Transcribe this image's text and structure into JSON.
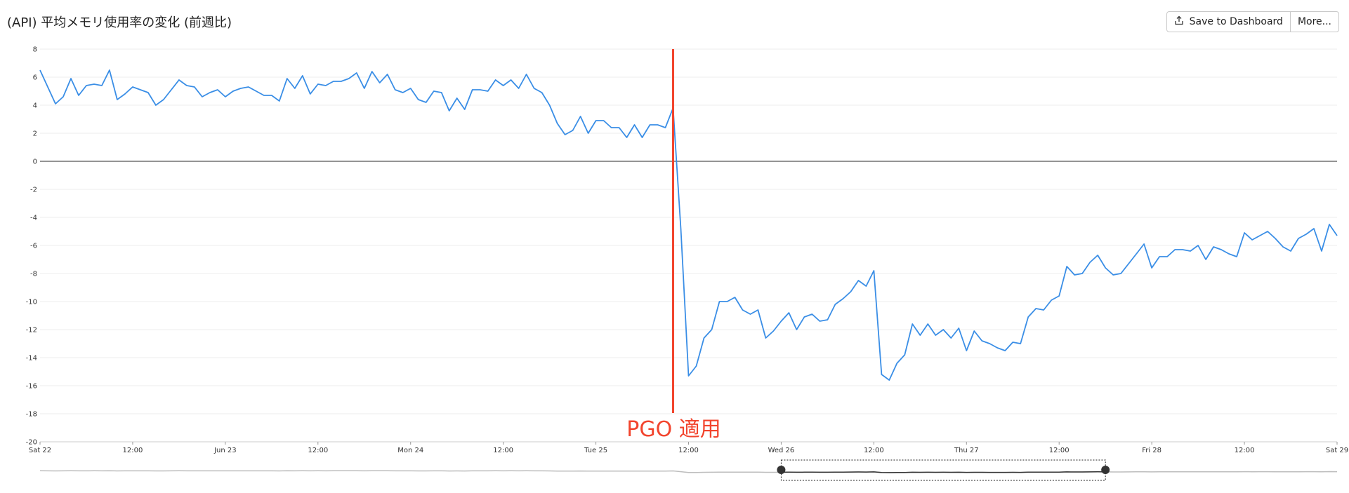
{
  "header": {
    "title": "(API) 平均メモリ使用率の変化 (前週比)",
    "save_label": "Save to Dashboard",
    "more_label": "More...",
    "save_icon": "upload-icon"
  },
  "colors": {
    "series": "#3a8ee6",
    "annotation": "#f2442d",
    "zero_line": "#555555",
    "grid": "#eeeeee",
    "overview_line": "#bdbdbd",
    "overview_selected": "#333333"
  },
  "chart_data": {
    "type": "line",
    "title": "(API) 平均メモリ使用率の変化 (前週比)",
    "xlabel": "",
    "ylabel": "",
    "ylim": [
      -20,
      8
    ],
    "xlim_hours": [
      0,
      168
    ],
    "y_ticks": [
      "8",
      "6",
      "4",
      "2",
      "0",
      "-2",
      "-4",
      "-6",
      "-8",
      "-10",
      "-12",
      "-14",
      "-16",
      "-18",
      "-20"
    ],
    "x_ticks": [
      {
        "label": "Sat 22",
        "hour": 0
      },
      {
        "label": "12:00",
        "hour": 12
      },
      {
        "label": "Jun 23",
        "hour": 24
      },
      {
        "label": "12:00",
        "hour": 36
      },
      {
        "label": "Mon 24",
        "hour": 48
      },
      {
        "label": "12:00",
        "hour": 60
      },
      {
        "label": "Tue 25",
        "hour": 72
      },
      {
        "label": "12:00",
        "hour": 84
      },
      {
        "label": "Wed 26",
        "hour": 96
      },
      {
        "label": "12:00",
        "hour": 108
      },
      {
        "label": "Thu 27",
        "hour": 120
      },
      {
        "label": "12:00",
        "hour": 132
      },
      {
        "label": "Fri 28",
        "hour": 144
      },
      {
        "label": "12:00",
        "hour": 156
      },
      {
        "label": "Sat 29",
        "hour": 168
      }
    ],
    "grid": true,
    "legend": "none",
    "series": [
      {
        "points": [
          [
            0,
            6.5
          ],
          [
            1,
            5.3
          ],
          [
            2,
            4.1
          ],
          [
            3,
            4.6
          ],
          [
            4,
            5.9
          ],
          [
            5,
            4.7
          ],
          [
            6,
            5.4
          ],
          [
            7,
            5.5
          ],
          [
            8,
            5.4
          ],
          [
            9,
            6.5
          ],
          [
            10,
            4.4
          ],
          [
            11,
            4.8
          ],
          [
            12,
            5.3
          ],
          [
            13,
            5.1
          ],
          [
            14,
            4.9
          ],
          [
            15,
            4.0
          ],
          [
            16,
            4.4
          ],
          [
            17,
            5.1
          ],
          [
            18,
            5.8
          ],
          [
            19,
            5.4
          ],
          [
            20,
            5.3
          ],
          [
            21,
            4.6
          ],
          [
            22,
            4.9
          ],
          [
            23,
            5.1
          ],
          [
            24,
            4.6
          ],
          [
            25,
            5.0
          ],
          [
            26,
            5.2
          ],
          [
            27,
            5.3
          ],
          [
            28,
            5.0
          ],
          [
            29,
            4.7
          ],
          [
            30,
            4.7
          ],
          [
            31,
            4.3
          ],
          [
            32,
            5.9
          ],
          [
            33,
            5.2
          ],
          [
            34,
            6.1
          ],
          [
            35,
            4.8
          ],
          [
            36,
            5.5
          ],
          [
            37,
            5.4
          ],
          [
            38,
            5.7
          ],
          [
            39,
            5.7
          ],
          [
            40,
            5.9
          ],
          [
            41,
            6.3
          ],
          [
            42,
            5.2
          ],
          [
            43,
            6.4
          ],
          [
            44,
            5.6
          ],
          [
            45,
            6.2
          ],
          [
            46,
            5.1
          ],
          [
            47,
            4.9
          ],
          [
            48,
            5.2
          ],
          [
            49,
            4.4
          ],
          [
            50,
            4.2
          ],
          [
            51,
            5.0
          ],
          [
            52,
            4.9
          ],
          [
            53,
            3.6
          ],
          [
            54,
            4.5
          ],
          [
            55,
            3.7
          ],
          [
            56,
            5.1
          ],
          [
            57,
            5.1
          ],
          [
            58,
            5.0
          ],
          [
            59,
            5.8
          ],
          [
            60,
            5.4
          ],
          [
            61,
            5.8
          ],
          [
            62,
            5.2
          ],
          [
            63,
            6.2
          ],
          [
            64,
            5.2
          ],
          [
            65,
            4.9
          ],
          [
            66,
            4.0
          ],
          [
            67,
            2.7
          ],
          [
            68,
            1.9
          ],
          [
            69,
            2.2
          ],
          [
            70,
            3.2
          ],
          [
            71,
            2.0
          ],
          [
            72,
            2.9
          ],
          [
            73,
            2.9
          ],
          [
            74,
            2.4
          ],
          [
            75,
            2.4
          ],
          [
            76,
            1.7
          ],
          [
            77,
            2.6
          ],
          [
            78,
            1.7
          ],
          [
            79,
            2.6
          ],
          [
            80,
            2.6
          ],
          [
            81,
            2.4
          ],
          [
            82,
            3.8
          ],
          [
            83,
            -4.8
          ],
          [
            84,
            -15.3
          ],
          [
            85,
            -14.6
          ],
          [
            86,
            -12.6
          ],
          [
            87,
            -12.0
          ],
          [
            88,
            -10.0
          ],
          [
            89,
            -10.0
          ],
          [
            90,
            -9.7
          ],
          [
            91,
            -10.6
          ],
          [
            92,
            -10.9
          ],
          [
            93,
            -10.6
          ],
          [
            94,
            -12.6
          ],
          [
            95,
            -12.1
          ],
          [
            96,
            -11.4
          ],
          [
            97,
            -10.8
          ],
          [
            98,
            -12.0
          ],
          [
            99,
            -11.1
          ],
          [
            100,
            -10.9
          ],
          [
            101,
            -11.4
          ],
          [
            102,
            -11.3
          ],
          [
            103,
            -10.2
          ],
          [
            104,
            -9.8
          ],
          [
            105,
            -9.3
          ],
          [
            106,
            -8.5
          ],
          [
            107,
            -8.9
          ],
          [
            108,
            -7.8
          ],
          [
            109,
            -15.2
          ],
          [
            110,
            -15.6
          ],
          [
            111,
            -14.4
          ],
          [
            112,
            -13.8
          ],
          [
            113,
            -11.6
          ],
          [
            114,
            -12.4
          ],
          [
            115,
            -11.6
          ],
          [
            116,
            -12.4
          ],
          [
            117,
            -12.0
          ],
          [
            118,
            -12.6
          ],
          [
            119,
            -11.9
          ],
          [
            120,
            -13.5
          ],
          [
            121,
            -12.1
          ],
          [
            122,
            -12.8
          ],
          [
            123,
            -13.0
          ],
          [
            124,
            -13.3
          ],
          [
            125,
            -13.5
          ],
          [
            126,
            -12.9
          ],
          [
            127,
            -13.0
          ],
          [
            128,
            -11.1
          ],
          [
            129,
            -10.5
          ],
          [
            130,
            -10.6
          ],
          [
            131,
            -9.9
          ],
          [
            132,
            -9.6
          ],
          [
            133,
            -7.5
          ],
          [
            134,
            -8.1
          ],
          [
            135,
            -8.0
          ],
          [
            136,
            -7.2
          ],
          [
            137,
            -6.7
          ],
          [
            138,
            -7.6
          ],
          [
            139,
            -8.1
          ],
          [
            140,
            -8.0
          ],
          [
            141,
            -7.3
          ],
          [
            142,
            -6.6
          ],
          [
            143,
            -5.9
          ],
          [
            144,
            -7.6
          ],
          [
            145,
            -6.8
          ],
          [
            146,
            -6.8
          ],
          [
            147,
            -6.3
          ],
          [
            148,
            -6.3
          ],
          [
            149,
            -6.4
          ],
          [
            150,
            -6.0
          ],
          [
            151,
            -7.0
          ],
          [
            152,
            -6.1
          ],
          [
            153,
            -6.3
          ],
          [
            154,
            -6.6
          ],
          [
            155,
            -6.8
          ],
          [
            156,
            -5.1
          ],
          [
            157,
            -5.6
          ],
          [
            158,
            -5.3
          ],
          [
            159,
            -5.0
          ],
          [
            160,
            -5.5
          ],
          [
            161,
            -6.1
          ],
          [
            162,
            -6.4
          ],
          [
            163,
            -5.5
          ],
          [
            164,
            -5.2
          ],
          [
            165,
            -4.8
          ],
          [
            166,
            -6.4
          ],
          [
            167,
            -4.5
          ],
          [
            168,
            -5.3
          ]
        ]
      }
    ],
    "annotations": [
      {
        "text": "PGO 適用",
        "hour": 82
      }
    ]
  },
  "overview": {
    "selected_range_hours": [
      96,
      138
    ]
  }
}
